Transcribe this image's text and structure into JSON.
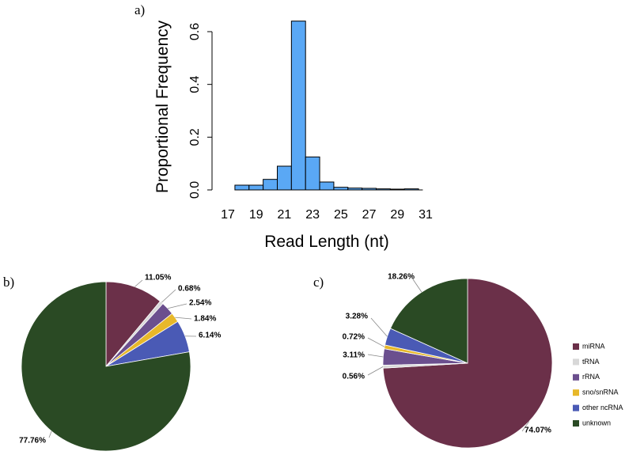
{
  "chart_data": [
    {
      "panel_label": "a)",
      "type": "bar",
      "xlabel": "Read Length (nt)",
      "ylabel": "Proportional Frequency",
      "x_bins": [
        18,
        19,
        20,
        21,
        22,
        23,
        24,
        25,
        26,
        27,
        28,
        29,
        30
      ],
      "values": [
        0.018,
        0.018,
        0.04,
        0.09,
        0.64,
        0.125,
        0.03,
        0.01,
        0.007,
        0.006,
        0.004,
        0.003,
        0.004
      ],
      "xticks": [
        "17",
        "19",
        "21",
        "23",
        "25",
        "27",
        "29",
        "31"
      ],
      "yticks": [
        "0.0",
        "0.2",
        "0.4",
        "0.6"
      ],
      "xlim": [
        17,
        31
      ],
      "ylim": [
        0,
        0.66
      ],
      "bar_color": "#5aa8f5"
    },
    {
      "panel_label": "b)",
      "type": "pie",
      "slices": [
        {
          "category": "miRNA",
          "value": 11.05,
          "label": "11.05%"
        },
        {
          "category": "tRNA",
          "value": 0.68,
          "label": "0.68%"
        },
        {
          "category": "rRNA",
          "value": 2.54,
          "label": "2.54%"
        },
        {
          "category": "sno/snRNA",
          "value": 1.84,
          "label": "1.84%"
        },
        {
          "category": "other ncRNA",
          "value": 6.14,
          "label": "6.14%"
        },
        {
          "category": "unknown",
          "value": 77.76,
          "label": "77.76%"
        }
      ]
    },
    {
      "panel_label": "c)",
      "type": "pie",
      "slices": [
        {
          "category": "miRNA",
          "value": 74.07,
          "label": "74.07%"
        },
        {
          "category": "tRNA",
          "value": 0.56,
          "label": "0.56%"
        },
        {
          "category": "rRNA",
          "value": 3.11,
          "label": "3.11%"
        },
        {
          "category": "sno/snRNA",
          "value": 0.72,
          "label": "0.72%"
        },
        {
          "category": "other ncRNA",
          "value": 3.28,
          "label": "3.28%"
        },
        {
          "category": "unknown",
          "value": 18.26,
          "label": "18.26%"
        }
      ],
      "legend_position": "right"
    }
  ],
  "legend": [
    {
      "label": "miRNA",
      "color": "#6b3049"
    },
    {
      "label": "tRNA",
      "color": "#d8d8d8"
    },
    {
      "label": "rRNA",
      "color": "#6b4f8e"
    },
    {
      "label": "sno/snRNA",
      "color": "#e7b82a"
    },
    {
      "label": "other ncRNA",
      "color": "#4a5ab5"
    },
    {
      "label": "unknown",
      "color": "#2a4a24"
    }
  ]
}
